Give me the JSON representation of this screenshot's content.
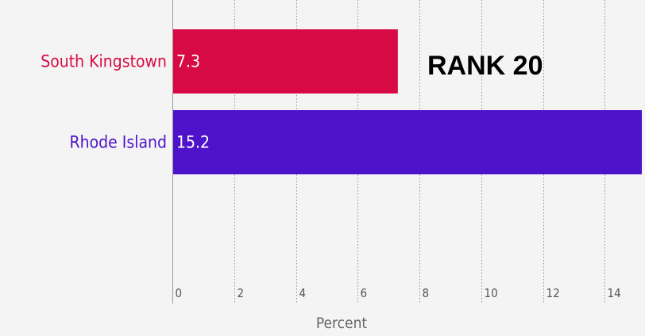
{
  "chart_data": {
    "type": "bar",
    "orientation": "horizontal",
    "categories": [
      "South Kingstown",
      "Rhode Island"
    ],
    "values": [
      7.3,
      15.2
    ],
    "value_labels": [
      "7.3",
      "15.2"
    ],
    "colors": [
      "#d80a45",
      "#4d12c9"
    ],
    "xlabel": "Percent",
    "xlim": [
      0,
      15.2
    ],
    "xticks": [
      "0",
      "2",
      "4",
      "6",
      "8",
      "10",
      "12",
      "14"
    ],
    "grid": "vertical dotted"
  },
  "annotation": {
    "rank_label": "RANK 20"
  }
}
